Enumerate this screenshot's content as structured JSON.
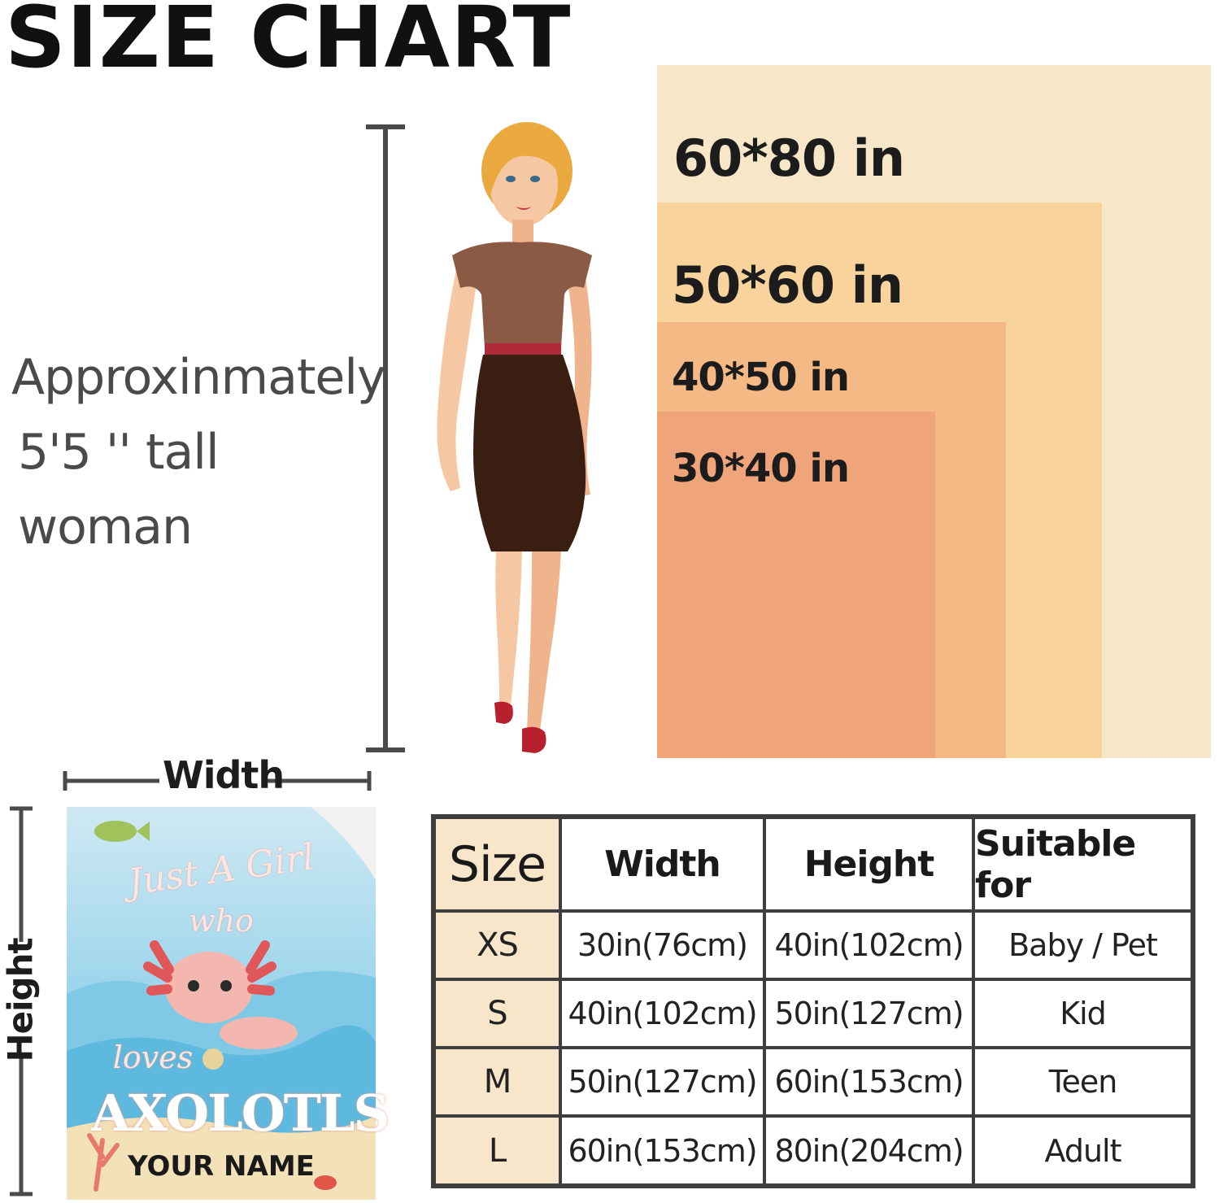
{
  "header": {
    "title": "SIZE CHART"
  },
  "figure_note": {
    "line1": "Approxinmately",
    "line2": "5'5 '' tall woman"
  },
  "size_labels": {
    "xl": "60*80 in",
    "l": "50*60 in",
    "m": "40*50 in",
    "s": "30*40 in"
  },
  "colors": {
    "size_60x80": "#f7e7c8",
    "size_50x60": "#f8d49c",
    "size_40x50": "#f4b985",
    "size_30x40": "#f0a47a",
    "table_border": "#3e3e3e",
    "size_column_bg": "#f7e6c9"
  },
  "blanket": {
    "width_label": "Width",
    "height_label": "Height",
    "text_line1": "Just A Girl",
    "text_line2": "who",
    "text_line3": "loves",
    "text_line4": "AXOLOTLS",
    "text_line5": "YOUR NAME"
  },
  "table": {
    "headers": [
      "Size",
      "Width",
      "Height",
      "Suitable for"
    ],
    "rows": [
      {
        "size": "XS",
        "width": "30in(76cm)",
        "height": "40in(102cm)",
        "suitable": "Baby / Pet"
      },
      {
        "size": "S",
        "width": "40in(102cm)",
        "height": "50in(127cm)",
        "suitable": "Kid"
      },
      {
        "size": "M",
        "width": "50in(127cm)",
        "height": "60in(153cm)",
        "suitable": "Teen"
      },
      {
        "size": "L",
        "width": "60in(153cm)",
        "height": "80in(204cm)",
        "suitable": "Adult"
      }
    ]
  }
}
